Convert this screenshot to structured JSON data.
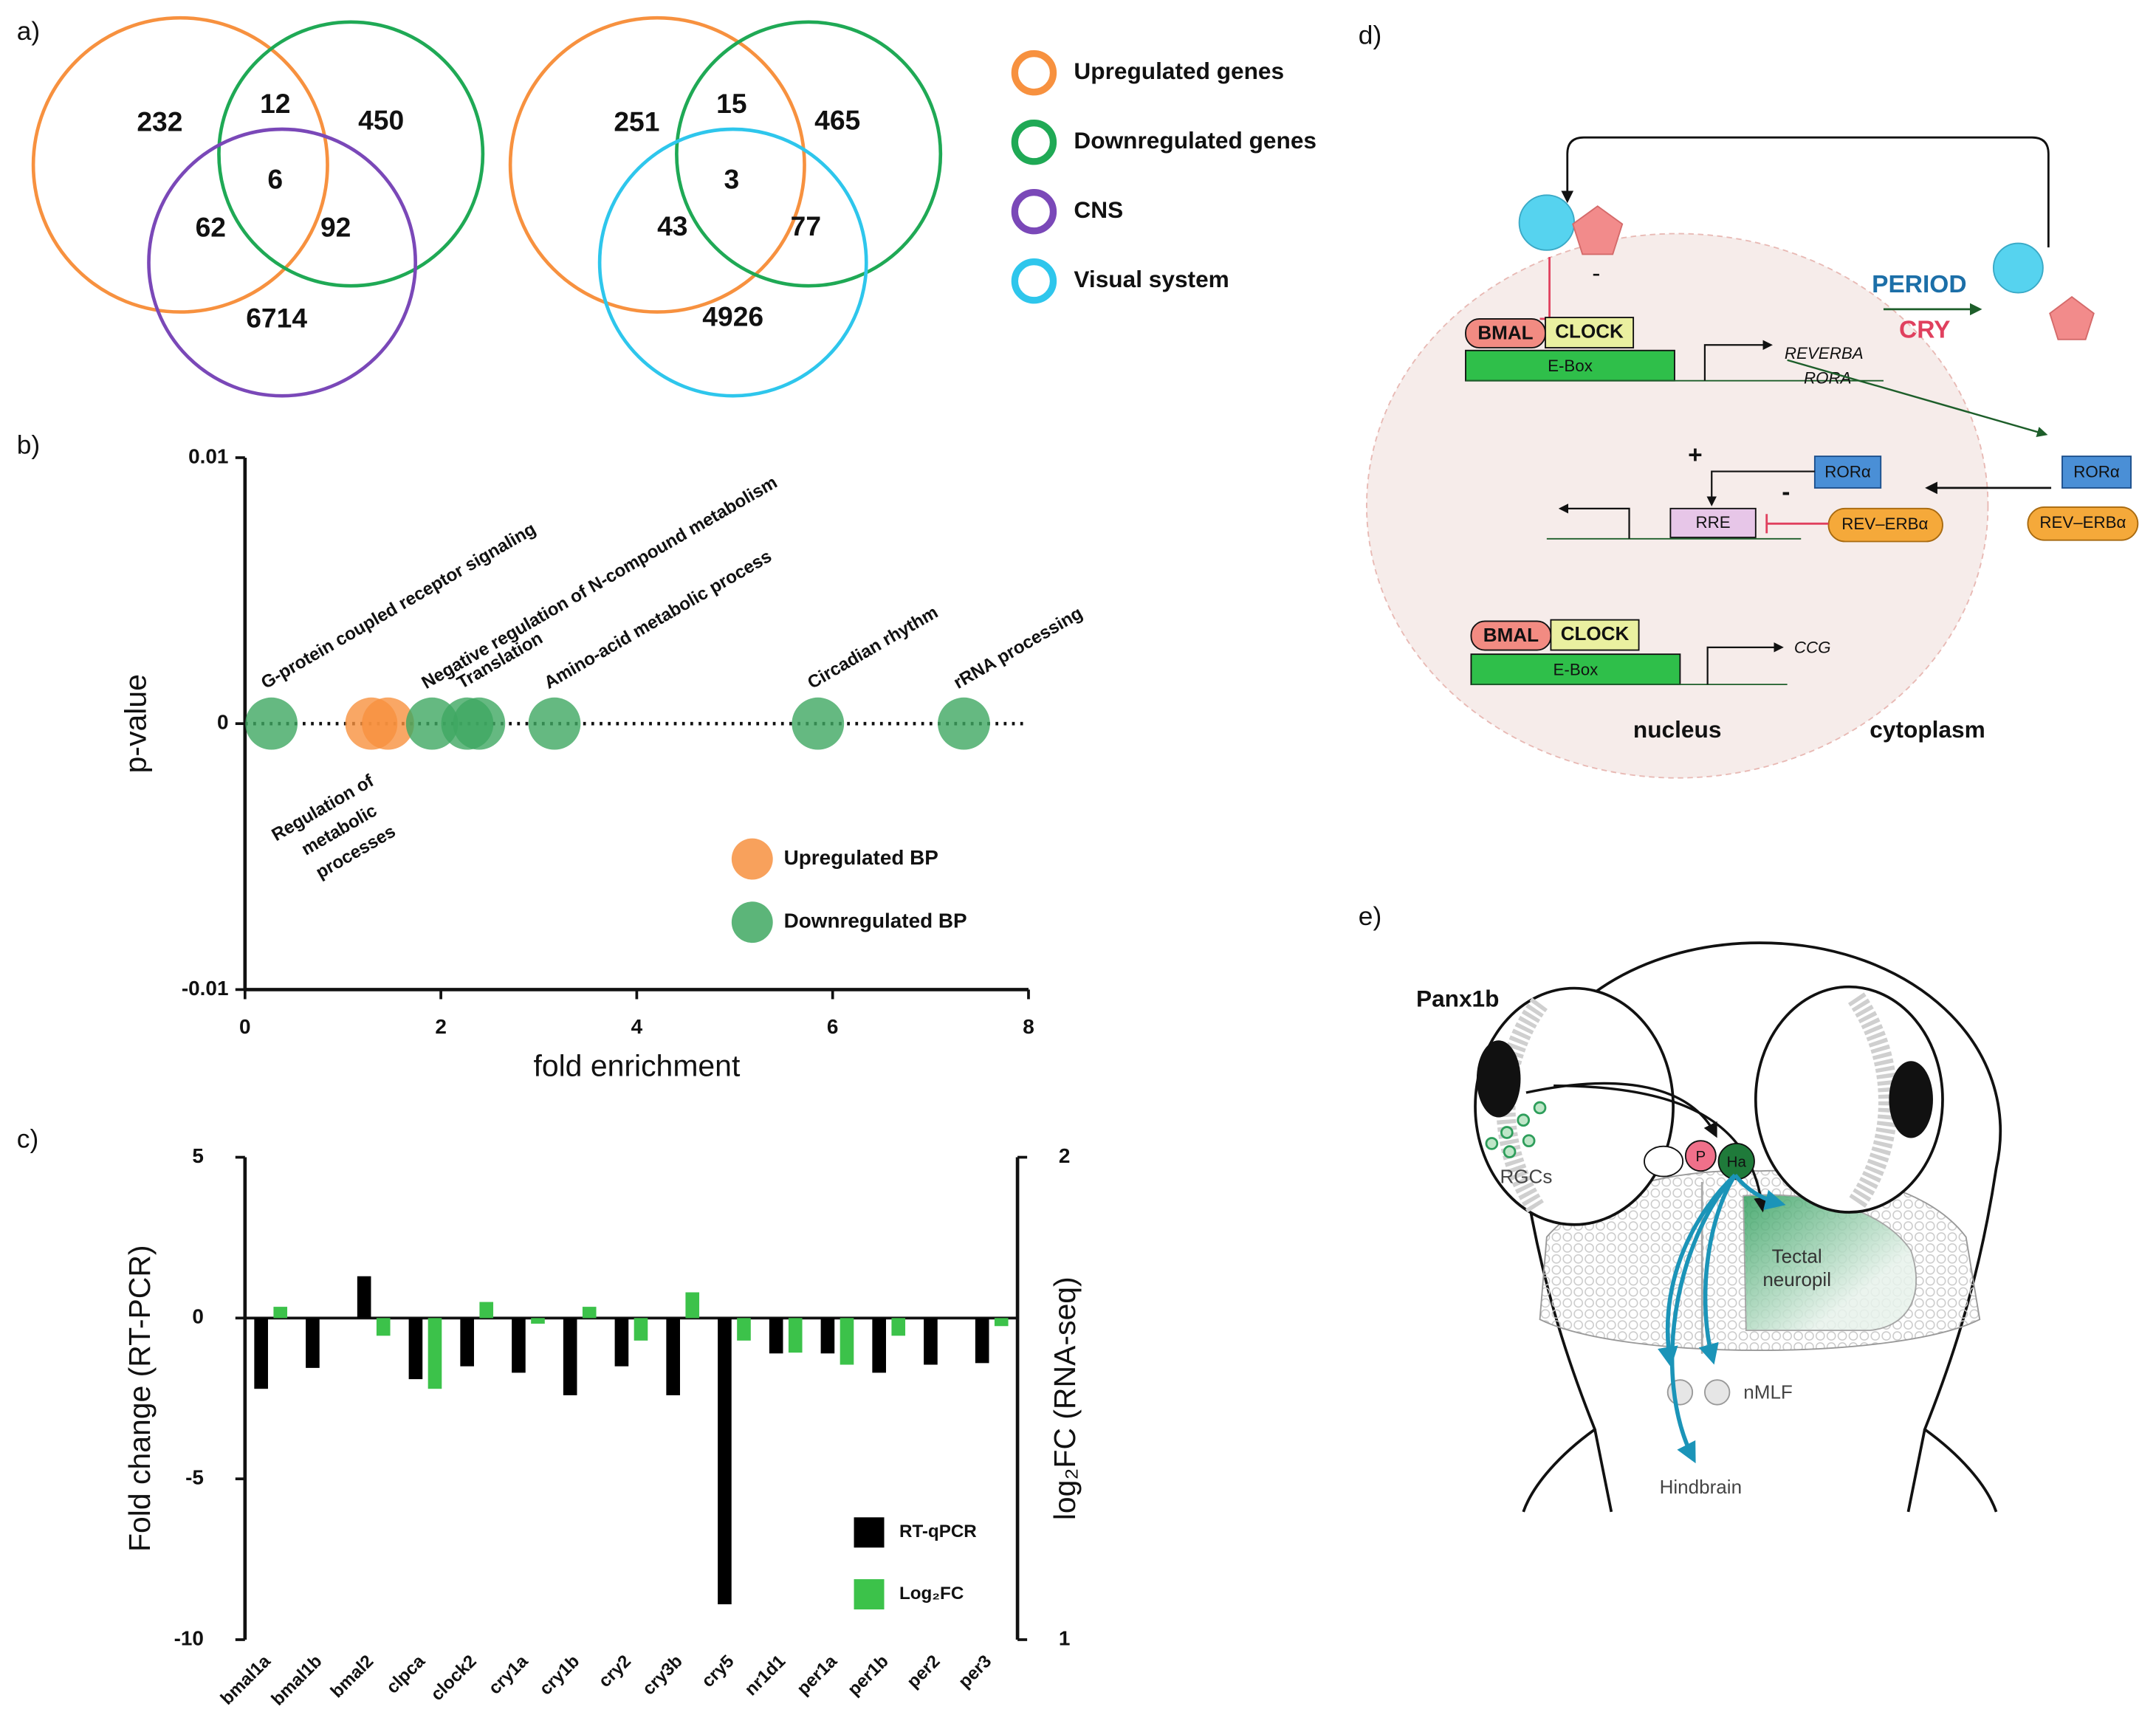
{
  "panel_labels": [
    "a)",
    "b)",
    "c)",
    "d)",
    "e)"
  ],
  "venn": {
    "legend": [
      {
        "name": "Upregulated genes",
        "color": "#f7913f"
      },
      {
        "name": "Downregulated genes",
        "color": "#1fa955"
      },
      {
        "name": "CNS",
        "color": "#7a48b8"
      },
      {
        "name": "Visual system",
        "color": "#2ec6ec"
      }
    ],
    "diagrams": [
      {
        "counts": [
          232,
          12,
          450,
          6,
          62,
          92,
          6714
        ]
      },
      {
        "counts": [
          251,
          15,
          465,
          3,
          43,
          77,
          4926
        ]
      }
    ]
  },
  "chart_data": [
    {
      "type": "scatter",
      "x_label": "fold enrichment",
      "y_label": "p-value",
      "xlim": [
        0,
        8
      ],
      "xticks": [
        0,
        2,
        4,
        6,
        8
      ],
      "ylim": [
        -0.01,
        0.01
      ],
      "yticks": [
        -0.01,
        0,
        0.01
      ],
      "hline": 0,
      "series": [
        {
          "name": "Upregulated BP",
          "color": "#f7913f",
          "x": [
            1.29,
            1.46
          ],
          "values": [
            0,
            0
          ],
          "labels": [
            [
              "Regulation of",
              "metabolic",
              "processes"
            ],
            null
          ]
        },
        {
          "name": "Downregulated BP",
          "color": "#3fa862",
          "x": [
            0.27,
            1.91,
            2.27,
            2.39,
            3.16,
            5.85,
            7.34
          ],
          "values": [
            0,
            0,
            0,
            0,
            0,
            0,
            0
          ],
          "labels": [
            "G-protein coupled receptor signaling",
            "Negative regulation of N-compound metabolism",
            "Translation",
            null,
            "Amino-acid metabolic process",
            "Circadian rhythm",
            "rRNA processing"
          ]
        }
      ]
    },
    {
      "type": "bar",
      "y_label": "Fold change (RT-PCR)",
      "y2_label": "log₂FC (RNA-seq)",
      "categories": [
        "bmal1a",
        "bmal1b",
        "bmal2",
        "clpca",
        "clock2",
        "cry1a",
        "cry1b",
        "cry2",
        "cry3b",
        "cry5",
        "nr1d1",
        "per1a",
        "per1b",
        "per2",
        "per3"
      ],
      "ylim": [
        -10,
        5
      ],
      "yticks": [
        -10,
        -5,
        0,
        5
      ],
      "y2lim": [
        1,
        2
      ],
      "y2ticks": [
        1,
        2
      ],
      "series": [
        {
          "name": "RT-qPCR",
          "color": "#000000",
          "values": [
            -2.2,
            -1.55,
            1.3,
            -1.9,
            -1.5,
            -1.7,
            -2.4,
            -1.5,
            -2.4,
            -8.9,
            -1.1,
            -1.1,
            -1.7,
            -1.45,
            -1.4
          ]
        },
        {
          "name": "Log₂FC",
          "color": "#3cc24a",
          "axis": "y2",
          "values": [
            1.69,
            null,
            1.63,
            1.52,
            1.7,
            1.655,
            1.69,
            1.62,
            1.72,
            1.62,
            1.595,
            1.57,
            1.63,
            null,
            1.65
          ]
        }
      ]
    }
  ],
  "diagram_d": {
    "period": "PERIOD",
    "cry": "CRY",
    "bmal_1": "BMAL",
    "clock_1": "CLOCK",
    "ebox_1": "E-Box",
    "reverba": "REVERBA",
    "rora": "RORA",
    "ror_cyto": "RORα",
    "reverb_cyto": "REV–ERBα",
    "ror_nuc": "RORα",
    "reverb_nuc": "REV–ERBα",
    "rre": "RRE",
    "plus": "+",
    "minus_top": "-",
    "minus_mid": "-",
    "bmal_2": "BMAL",
    "clock_2": "CLOCK",
    "ebox_2": "E-Box",
    "ccg": "CCG",
    "nucleus": "nucleus",
    "cytoplasm": "cytoplasm"
  },
  "diagram_e": {
    "title": "Panx1b",
    "rgcs": "RGCs",
    "p": "P",
    "ha": "Ha",
    "tectal": [
      "Tectal",
      "neuropil"
    ],
    "nmlf": "nMLF",
    "hindbrain": "Hindbrain"
  }
}
